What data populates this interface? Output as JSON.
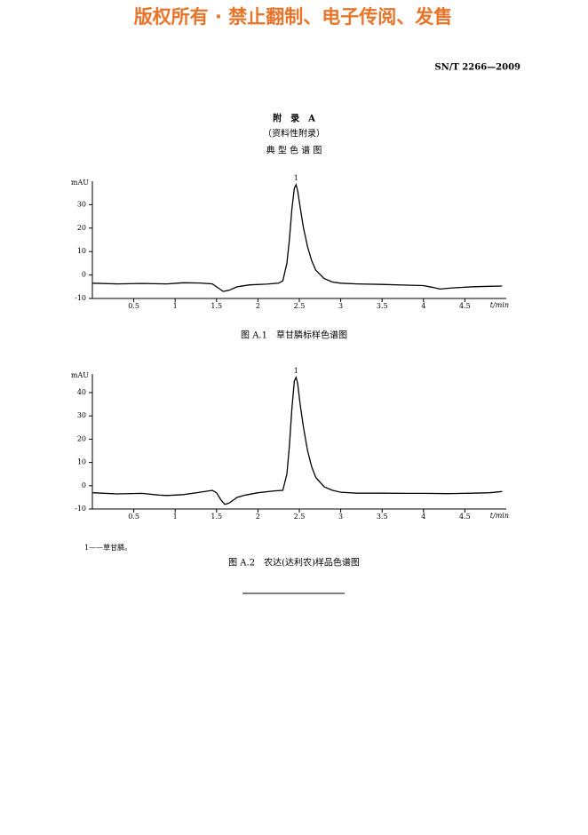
{
  "watermark": "版权所有 ·   禁止翻制、电子传阅、发售",
  "doc_id": "SN/T 2266—2009",
  "annex": {
    "title": "附　录　A",
    "subtitle": "（资料性附录）",
    "heading": "典 型 色 谱 图"
  },
  "chart_data": [
    {
      "type": "line",
      "y_label": "mAU",
      "x_label": "t/min",
      "x": [
        0,
        0.3,
        0.6,
        0.9,
        1.1,
        1.3,
        1.45,
        1.52,
        1.58,
        1.65,
        1.75,
        1.9,
        2.1,
        2.25,
        2.3,
        2.35,
        2.38,
        2.41,
        2.44,
        2.46,
        2.48,
        2.51,
        2.55,
        2.6,
        2.65,
        2.7,
        2.8,
        2.9,
        3.0,
        3.2,
        3.5,
        3.8,
        4.0,
        4.1,
        4.2,
        4.35,
        4.6,
        4.8,
        4.95
      ],
      "series": [
        {
          "color": "#000000",
          "values": [
            -3.5,
            -3.8,
            -3.6,
            -3.8,
            -3.3,
            -3.4,
            -3.8,
            -5.5,
            -7.0,
            -6.5,
            -5.0,
            -4.2,
            -3.9,
            -3.5,
            -2.5,
            5,
            15,
            28,
            37,
            38.5,
            36,
            29,
            20,
            12,
            6,
            2,
            -1.5,
            -3,
            -3.5,
            -3.8,
            -4,
            -4.3,
            -4.5,
            -5.2,
            -6.0,
            -5.5,
            -5.0,
            -4.8,
            -4.7
          ]
        }
      ],
      "xlim": [
        0,
        5
      ],
      "xticks": [
        0.5,
        1,
        1.5,
        2,
        2.5,
        3,
        3.5,
        4,
        4.5
      ],
      "ylim": [
        -10,
        40
      ],
      "yticks": [
        -10,
        0,
        10,
        20,
        30
      ],
      "peak_label": {
        "text": "1",
        "x": 2.46
      },
      "caption": "图 A.1　草甘膦标样色谱图"
    },
    {
      "type": "line",
      "y_label": "mAU",
      "x_label": "t/min",
      "x": [
        0,
        0.3,
        0.6,
        0.8,
        0.9,
        1.1,
        1.3,
        1.45,
        1.5,
        1.55,
        1.6,
        1.65,
        1.75,
        1.85,
        2.0,
        2.2,
        2.3,
        2.35,
        2.38,
        2.41,
        2.44,
        2.46,
        2.48,
        2.51,
        2.55,
        2.6,
        2.65,
        2.7,
        2.8,
        2.9,
        3.0,
        3.2,
        3.5,
        3.8,
        4.0,
        4.3,
        4.6,
        4.8,
        4.95
      ],
      "series": [
        {
          "color": "#000000",
          "values": [
            -3,
            -3.5,
            -3.3,
            -4.0,
            -4.2,
            -3.8,
            -2.8,
            -2.0,
            -3,
            -6,
            -8,
            -7.5,
            -5,
            -4,
            -3,
            -2.2,
            -2,
            5,
            17,
            33,
            45,
            46.5,
            44,
            35,
            25,
            15,
            8,
            3.5,
            -0.5,
            -2,
            -2.8,
            -3.2,
            -3.2,
            -3.3,
            -3.3,
            -3.4,
            -3.2,
            -3.0,
            -2.5
          ]
        }
      ],
      "xlim": [
        0,
        5
      ],
      "xticks": [
        0.5,
        1,
        1.5,
        2,
        2.5,
        3,
        3.5,
        4,
        4.5
      ],
      "ylim": [
        -10,
        48
      ],
      "yticks": [
        -10,
        0,
        10,
        20,
        30,
        40
      ],
      "peak_label": {
        "text": "1",
        "x": 2.46
      },
      "caption": "图 A.2　农达(达利农)样品色谱图"
    }
  ],
  "note": "1——草甘膦。"
}
